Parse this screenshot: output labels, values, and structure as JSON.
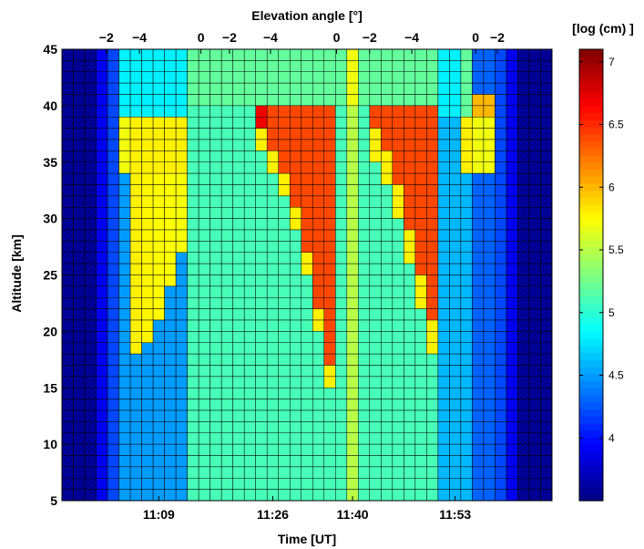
{
  "chart_data": {
    "type": "heatmap",
    "title": "",
    "xlabel": "Time [UT]",
    "ylabel": "Altitude [km]",
    "top_axis_label": "Elevation angle [°]",
    "colorbar_label": "[log (cm) ]",
    "x_ticks": [
      "11:09",
      "11:26",
      "11:40",
      "11:53"
    ],
    "top_ticks": [
      "−2",
      "−4",
      "0",
      "−2",
      "−4",
      "0",
      "−2",
      "−4",
      "0",
      "−2"
    ],
    "y_ticks": [
      "5",
      "10",
      "15",
      "20",
      "25",
      "30",
      "35",
      "40",
      "45"
    ],
    "ylim": [
      5,
      45
    ],
    "colorbar_ticks": [
      "4",
      "4.5",
      "5",
      "5.5",
      "6",
      "6.5",
      "7"
    ],
    "colorbar_range": [
      3.5,
      7.1
    ],
    "colormap": "jet",
    "grid": true,
    "n_time_columns": 43,
    "altitude_cell_km": 1,
    "cells_description": "z = log10 column density per altitude bin (1 km) for each time sample; piecewise constant bands",
    "bands": [
      {
        "cols": [
          0,
          2
        ],
        "alt": [
          5,
          45
        ],
        "value": 3.6
      },
      {
        "cols": [
          3,
          3
        ],
        "alt": [
          5,
          45
        ],
        "value": 3.9
      },
      {
        "cols": [
          4,
          5
        ],
        "alt": [
          5,
          45
        ],
        "value": 4.3
      },
      {
        "cols": [
          6,
          9
        ],
        "alt": [
          5,
          34
        ],
        "value": 4.5,
        "upper_value": 4.8,
        "with_tongue": true
      },
      {
        "cols": [
          10,
          15
        ],
        "alt": [
          5,
          45
        ],
        "value": 5.0,
        "upper_value": 5.3,
        "with_plume": "left"
      },
      {
        "cols": [
          16,
          20
        ],
        "alt": [
          5,
          45
        ],
        "value": 5.1,
        "upper_value": 5.3,
        "with_plume": "right"
      },
      {
        "cols": [
          21,
          21
        ],
        "alt": [
          5,
          45
        ],
        "value": 5.3
      },
      {
        "cols": [
          22,
          24
        ],
        "alt": [
          5,
          45
        ],
        "value": 5.0,
        "upper_value": 5.7
      },
      {
        "cols": [
          25,
          31
        ],
        "alt": [
          5,
          45
        ],
        "value": 5.0,
        "upper_value": 5.3,
        "with_plume": "mirror"
      },
      {
        "cols": [
          32,
          33
        ],
        "alt": [
          5,
          45
        ],
        "value": 4.7,
        "upper_value": 4.8
      },
      {
        "cols": [
          34,
          35
        ],
        "alt": [
          5,
          45
        ],
        "value": 4.4
      },
      {
        "cols": [
          36,
          36
        ],
        "alt": [
          5,
          45
        ],
        "value": 4.1
      },
      {
        "cols": [
          37,
          39
        ],
        "alt": [
          5,
          45
        ],
        "value": 3.6
      }
    ]
  }
}
